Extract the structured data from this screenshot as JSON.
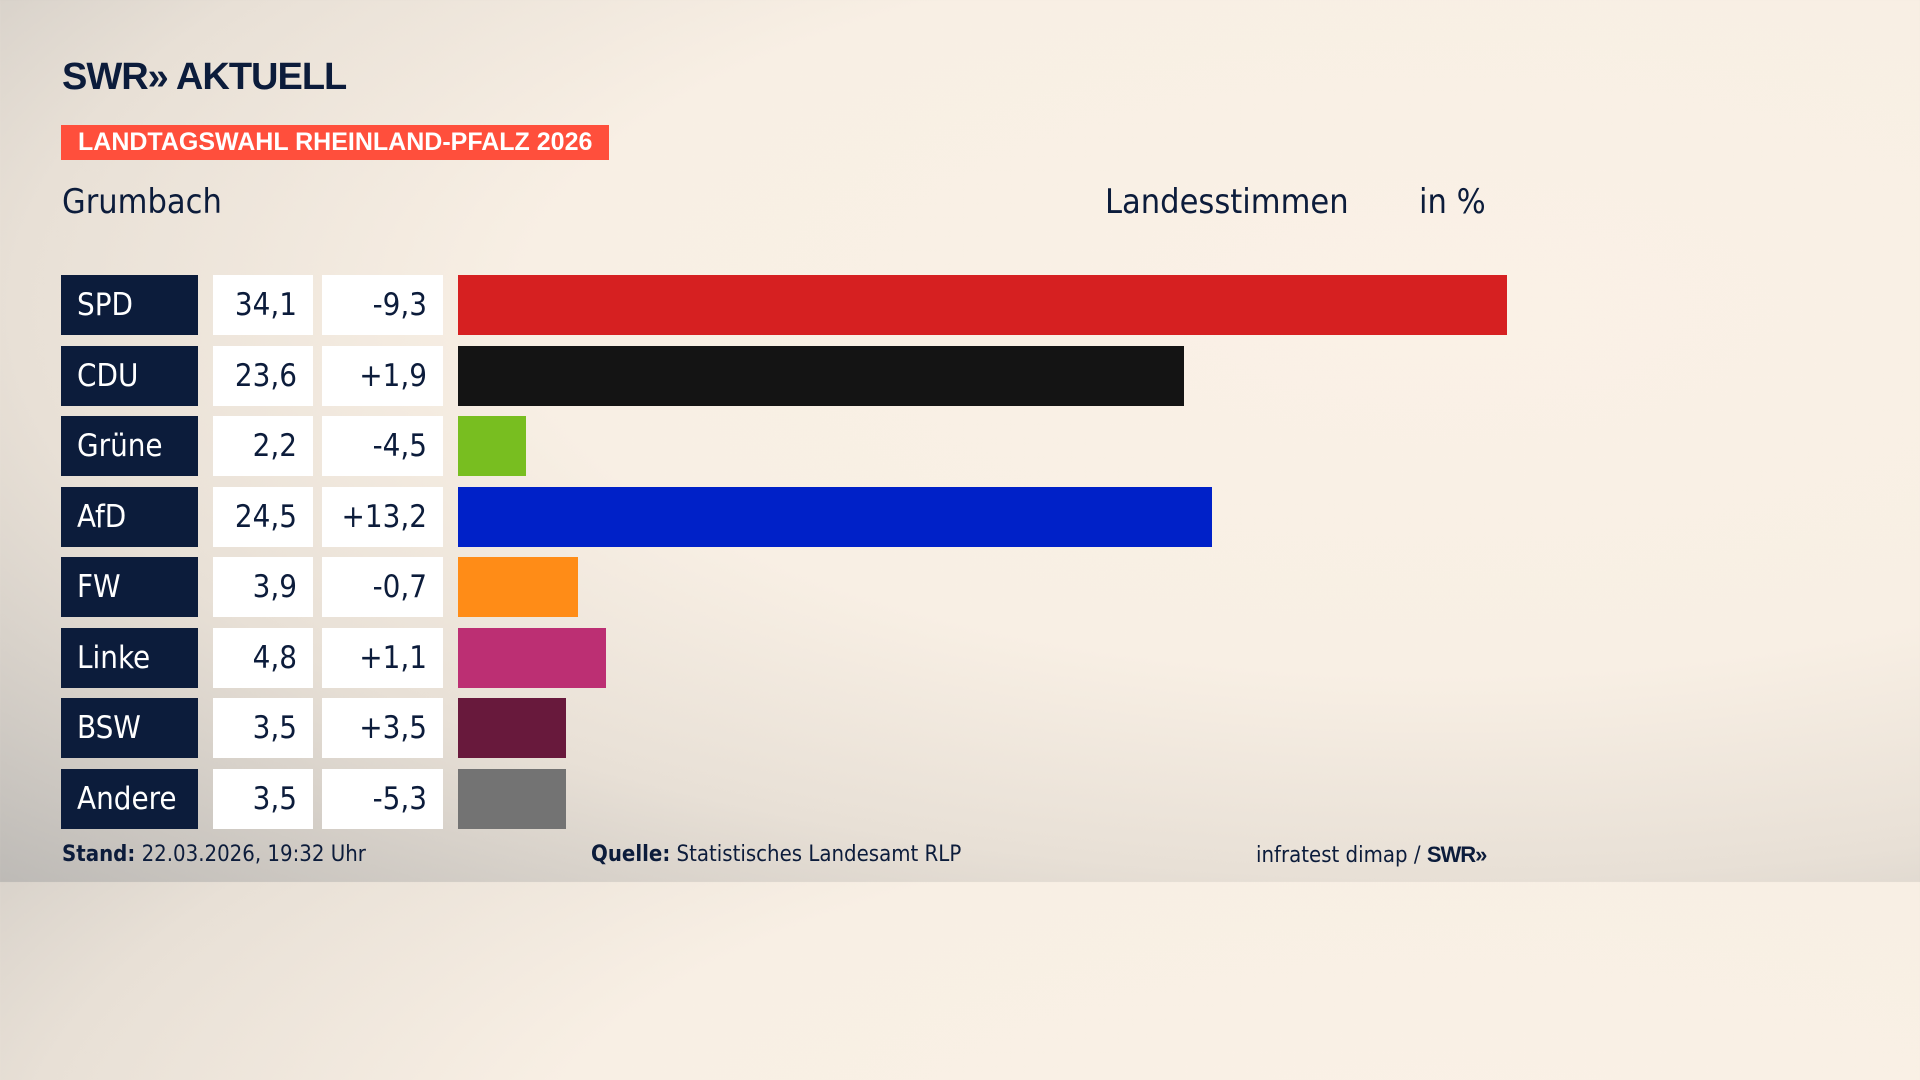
{
  "header": {
    "logo": "SWR» AKTUELL",
    "banner": "LANDTAGSWAHL RHEINLAND-PFALZ 2026",
    "place": "Grumbach",
    "measure": "Landesstimmen",
    "unit": "in %"
  },
  "chart_data": {
    "type": "bar",
    "orientation": "horizontal",
    "categories": [
      "SPD",
      "CDU",
      "Grüne",
      "AfD",
      "FW",
      "Linke",
      "BSW",
      "Andere"
    ],
    "values": [
      34.1,
      23.6,
      2.2,
      24.5,
      3.9,
      4.8,
      3.5,
      3.5
    ],
    "value_labels": [
      "34,1",
      "23,6",
      "2,2",
      "24,5",
      "3,9",
      "4,8",
      "3,5",
      "3,5"
    ],
    "diff_labels": [
      "-9,3",
      "+1,9",
      "-4,5",
      "+13,2",
      "-0,7",
      "+1,1",
      "+3,5",
      "-5,3"
    ],
    "diffs": [
      -9.3,
      1.9,
      -4.5,
      13.2,
      -0.7,
      1.1,
      3.5,
      -5.3
    ],
    "colors": [
      "#d62021",
      "#141414",
      "#78be20",
      "#0021c8",
      "#ff8c17",
      "#bc2f73",
      "#68193c",
      "#737373"
    ]
  },
  "footer": {
    "stand_label": "Stand:",
    "stand_value": "22.03.2026, 19:32 Uhr",
    "source_label": "Quelle:",
    "source_value": "Statistisches Landesamt RLP",
    "credit": "infratest dimap /",
    "credit_logo": "SWR»"
  }
}
